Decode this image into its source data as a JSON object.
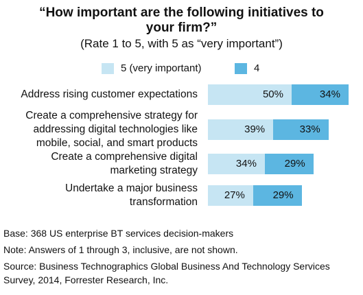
{
  "chart_data": {
    "type": "stacked-barh",
    "title": "“How important are the following initiatives to your firm?”",
    "subtitle": "(Rate 1 to 5, with 5 as “very important”)",
    "categories": [
      "Address rising customer expectations",
      "Create a comprehensive strategy for addressing digital technologies like mobile, social, and smart products",
      "Create a comprehensive digital marketing strategy",
      "Undertake a major business transformation"
    ],
    "series": [
      {
        "name": "5 (very important)",
        "color": "#c6e5f3",
        "values": [
          50,
          39,
          34,
          27
        ],
        "value_labels": [
          "50%",
          "39%",
          "34%",
          "27%"
        ]
      },
      {
        "name": "4",
        "color": "#5cb6e1",
        "values": [
          34,
          33,
          29,
          29
        ],
        "value_labels": [
          "34%",
          "33%",
          "29%",
          "29%"
        ]
      }
    ],
    "footnotes": [
      "Base: 368 US enterprise BT services decision-makers",
      "Note: Answers of 1 through 3, inclusive, are not shown.",
      "Source: Business Technographics Global Business And Technology Services Survey, 2014, Forrester Research, Inc."
    ]
  }
}
